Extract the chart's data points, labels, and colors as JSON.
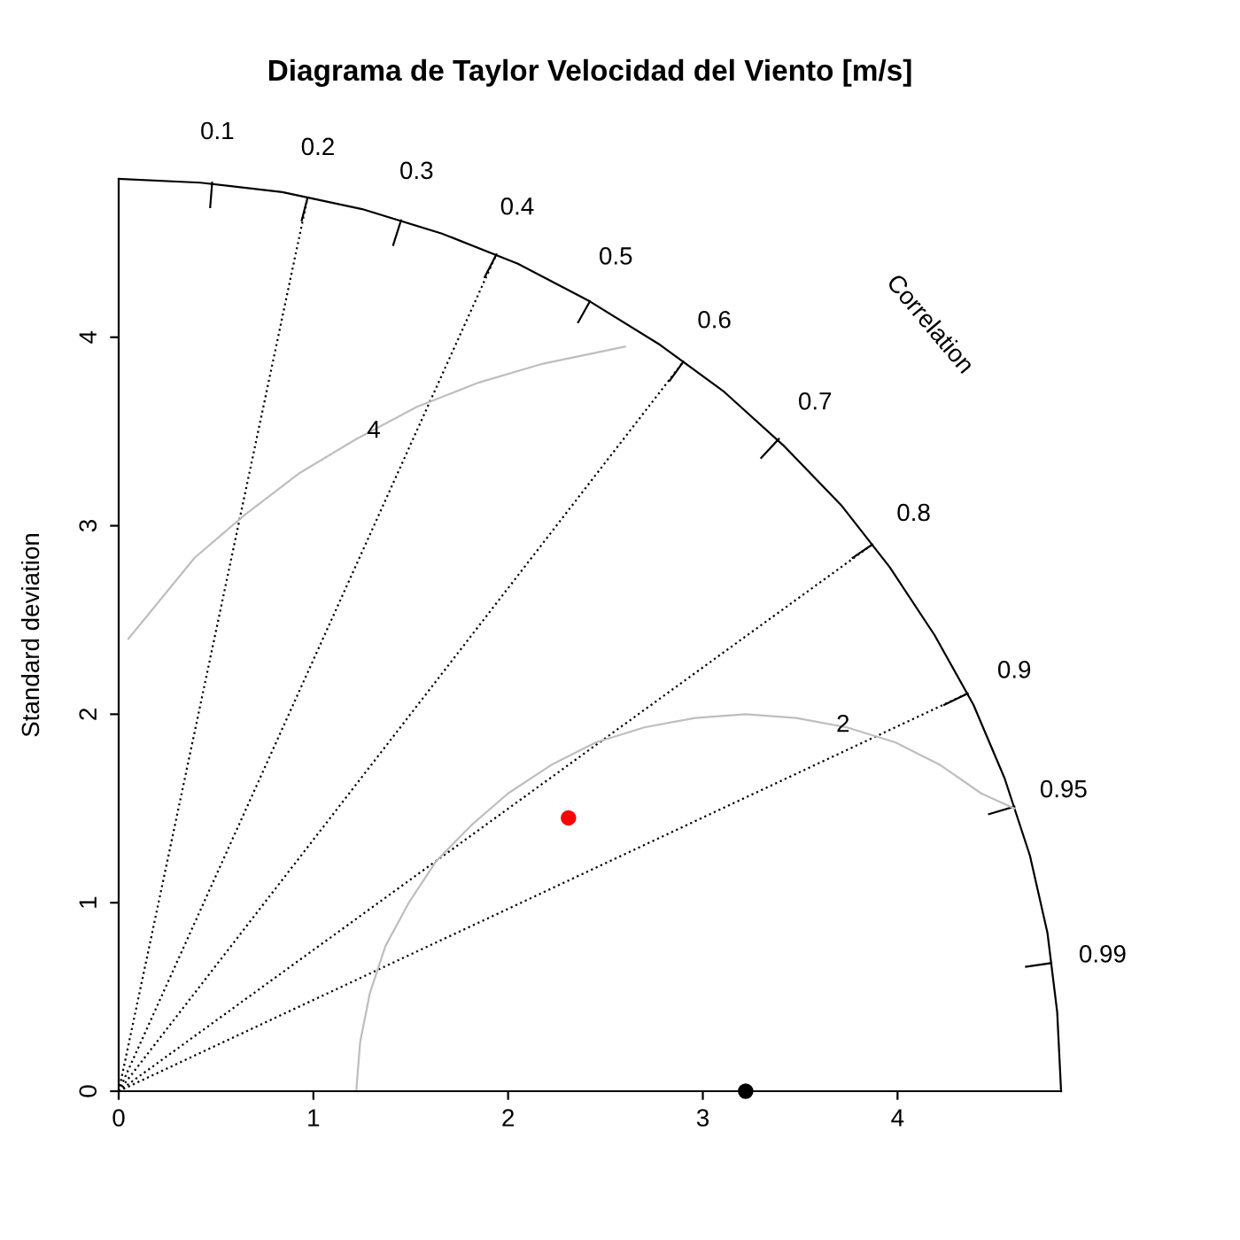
{
  "chart_data": {
    "type": "scatter",
    "title": "Diagrama de Taylor Velocidad del Viento [m/s]",
    "ylabel": "Standard deviation",
    "xlim": [
      0,
      4.84
    ],
    "ylim": [
      0,
      4.84
    ],
    "xticks": [
      0,
      1,
      2,
      3,
      4
    ],
    "yticks": [
      0,
      1,
      2,
      3,
      4
    ],
    "grid": false,
    "legend": false,
    "series": [
      {
        "type": "line",
        "marker": "none",
        "color": "#000000",
        "line_style": "solid",
        "x": [
          0.48,
          0.47
        ],
        "values": [
          4.82,
          4.69
        ]
      },
      {
        "type": "line",
        "marker": "none",
        "color": "#000000",
        "line_style": "solid",
        "x": [
          0.97,
          0.94
        ],
        "values": [
          4.74,
          4.62
        ]
      },
      {
        "type": "line",
        "marker": "none",
        "color": "#000000",
        "line_style": "solid",
        "x": [
          1.45,
          1.41
        ],
        "values": [
          4.62,
          4.49
        ]
      },
      {
        "type": "line",
        "marker": "none",
        "color": "#000000",
        "line_style": "solid",
        "x": [
          1.94,
          1.88
        ],
        "values": [
          4.44,
          4.32
        ]
      },
      {
        "type": "line",
        "marker": "none",
        "color": "#000000",
        "line_style": "solid",
        "x": [
          2.42,
          2.36
        ],
        "values": [
          4.19,
          4.08
        ]
      },
      {
        "type": "line",
        "marker": "none",
        "color": "#000000",
        "line_style": "solid",
        "x": [
          2.9,
          2.83
        ],
        "values": [
          3.87,
          3.77
        ]
      },
      {
        "type": "line",
        "marker": "none",
        "color": "#000000",
        "line_style": "solid",
        "x": [
          3.39,
          3.3
        ],
        "values": [
          3.46,
          3.36
        ]
      },
      {
        "type": "line",
        "marker": "none",
        "color": "#000000",
        "line_style": "solid",
        "x": [
          3.87,
          3.77
        ],
        "values": [
          2.9,
          2.83
        ]
      },
      {
        "type": "line",
        "marker": "none",
        "color": "#000000",
        "line_style": "solid",
        "x": [
          4.36,
          4.24
        ],
        "values": [
          2.11,
          2.05
        ]
      },
      {
        "type": "line",
        "marker": "none",
        "color": "#000000",
        "line_style": "solid",
        "x": [
          4.6,
          4.47
        ],
        "values": [
          1.51,
          1.47
        ]
      },
      {
        "type": "line",
        "marker": "none",
        "color": "#000000",
        "line_style": "solid",
        "x": [
          4.79,
          4.66
        ],
        "values": [
          0.68,
          0.66
        ]
      },
      {
        "type": "line",
        "marker": "none",
        "color": "#000000",
        "line_style": "dotted",
        "x": [
          0,
          0.97
        ],
        "values": [
          0,
          4.74
        ]
      },
      {
        "type": "line",
        "marker": "none",
        "color": "#000000",
        "line_style": "dotted",
        "x": [
          0,
          1.94
        ],
        "values": [
          0,
          4.44
        ]
      },
      {
        "type": "line",
        "marker": "none",
        "color": "#000000",
        "line_style": "dotted",
        "x": [
          0,
          2.9
        ],
        "values": [
          0,
          3.87
        ]
      },
      {
        "type": "line",
        "marker": "none",
        "color": "#000000",
        "line_style": "dotted",
        "x": [
          0,
          3.87
        ],
        "values": [
          0,
          2.9
        ]
      },
      {
        "type": "line",
        "marker": "none",
        "color": "#000000",
        "line_style": "dotted",
        "x": [
          0,
          4.36
        ],
        "values": [
          0,
          2.11
        ]
      },
      {
        "type": "line",
        "marker": "none",
        "color": "#000000",
        "line_style": "solid",
        "x": [
          4.84,
          4.82,
          4.77,
          4.68,
          4.55,
          4.39,
          4.19,
          3.96,
          3.71,
          3.42,
          3.11,
          2.78,
          2.42,
          2.05,
          1.66,
          1.25,
          0.84,
          0.42,
          0
        ],
        "values": [
          0,
          0.42,
          0.84,
          1.25,
          1.66,
          2.05,
          2.42,
          2.78,
          3.11,
          3.42,
          3.71,
          3.96,
          4.19,
          4.39,
          4.55,
          4.68,
          4.77,
          4.82,
          4.84
        ]
      },
      {
        "type": "line",
        "marker": "none",
        "color": "#bebebe",
        "line_style": "solid",
        "x": [
          1.22,
          1.24,
          1.29,
          1.37,
          1.49,
          1.63,
          1.81,
          2.0,
          2.22,
          2.45,
          2.7,
          2.96,
          3.22,
          3.48,
          3.74,
          3.99,
          4.22,
          4.43,
          4.6
        ],
        "values": [
          0,
          0.26,
          0.52,
          0.77,
          1.0,
          1.22,
          1.41,
          1.58,
          1.73,
          1.85,
          1.93,
          1.98,
          2.0,
          1.98,
          1.93,
          1.85,
          1.73,
          1.58,
          1.5
        ]
      },
      {
        "type": "line",
        "marker": "none",
        "color": "#bebebe",
        "line_style": "solid",
        "x": [
          0.05,
          0.39,
          0.65,
          0.93,
          1.22,
          1.53,
          1.85,
          2.18,
          2.6
        ],
        "values": [
          2.4,
          2.83,
          3.06,
          3.28,
          3.46,
          3.63,
          3.76,
          3.86,
          3.95
        ]
      },
      {
        "color": "#ff0000",
        "x": [
          2.31
        ],
        "values": [
          1.45
        ]
      },
      {
        "color": "#000000",
        "x": [
          3.22
        ],
        "values": [
          0
        ]
      }
    ],
    "marker": "circle",
    "annotations": [
      "0.1",
      "0.2",
      "0.3",
      "0.4",
      "0.5",
      "0.6",
      "0.7",
      "0.8",
      "0.9",
      "0.95",
      "0.99",
      "Correlation",
      {
        "text": "4",
        "x": 1.31,
        "y": 3.5
      },
      {
        "text": "2",
        "x": 3.72,
        "y": 1.94
      }
    ]
  }
}
